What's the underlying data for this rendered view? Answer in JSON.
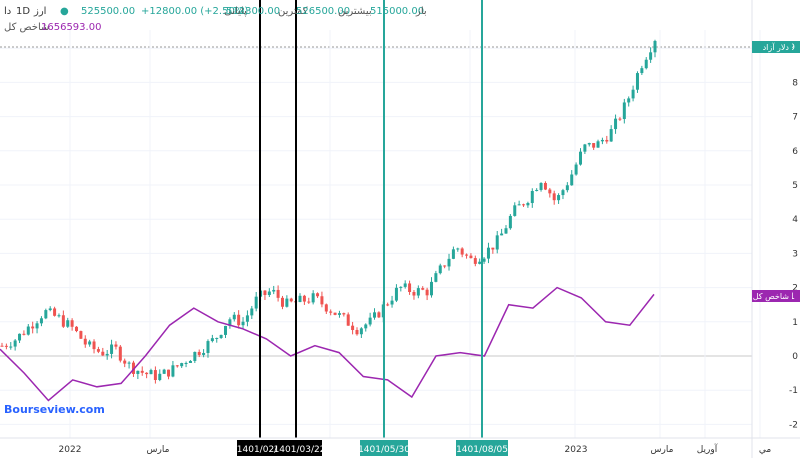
{
  "header": {
    "symbol_label": "ارز",
    "interval": "1D",
    "symbol_suffix": "دا",
    "open_label": "باز",
    "open_value": "515000.00",
    "high_label": "بیشترین",
    "high_value": "526500.00",
    "low_label": "کمترین",
    "low_value": "512300.00",
    "close_label": "پایانی",
    "close_value": "525500.00",
    "change": "+12800.00 (+2.50%)",
    "index_name": "شاخص کل",
    "index_value": "1656593.00"
  },
  "watermark": "Bourseview.com",
  "colors": {
    "up": "#26a69a",
    "down": "#ef5350",
    "index_line": "#9c27b0",
    "black_marker": "#000000",
    "teal_marker": "#26a69a"
  },
  "chart_data": {
    "type": "line",
    "title": "",
    "x_tick_labels": [
      "2022",
      "مارس",
      "2023",
      "مارس",
      "آوریل",
      "مي"
    ],
    "y_tick_labels": [
      "9",
      "8",
      "7",
      "6",
      "5",
      "4",
      "3",
      "2",
      "1",
      "0",
      "-1",
      "-2"
    ],
    "ylim": [
      -2,
      9
    ],
    "series": [
      {
        "name": "دلار آزاد",
        "style": "candlestick",
        "color": "#26a69a",
        "badge_value": "9",
        "values": [
          0.3,
          0.5,
          0.9,
          1.3,
          1.1,
          0.8,
          0.3,
          0.1,
          0.2,
          -0.3,
          -0.5,
          -0.6,
          -0.4,
          -0.1,
          0.2,
          0.5,
          1.1,
          1.0,
          1.7,
          1.9,
          1.5,
          1.6,
          1.7,
          1.4,
          1.1,
          0.8,
          1.0,
          1.5,
          2.0,
          1.9,
          1.9,
          2.6,
          3.2,
          2.8,
          3.0,
          3.4,
          4.2,
          4.6,
          5.2,
          4.5,
          5.2,
          6.1,
          6.2,
          6.6,
          7.4,
          8.5,
          9.3
        ]
      },
      {
        "name": "شاخص کل",
        "style": "line",
        "color": "#9c27b0",
        "badge_value": "1",
        "values": [
          0.2,
          -0.5,
          -1.3,
          -0.7,
          -0.9,
          -0.8,
          0.0,
          0.9,
          1.4,
          1.0,
          0.8,
          0.5,
          0.0,
          0.3,
          0.1,
          -0.6,
          -0.7,
          -1.2,
          0.0,
          0.1,
          0.0,
          1.5,
          1.4,
          2.0,
          1.7,
          1.0,
          0.9,
          1.8
        ]
      }
    ],
    "markers": [
      {
        "label": "1401/02/",
        "color": "black"
      },
      {
        "label": "1401/03/22",
        "color": "black"
      },
      {
        "label": "1401/05/30",
        "color": "teal"
      },
      {
        "label": "1401/08/05",
        "color": "teal"
      }
    ]
  }
}
